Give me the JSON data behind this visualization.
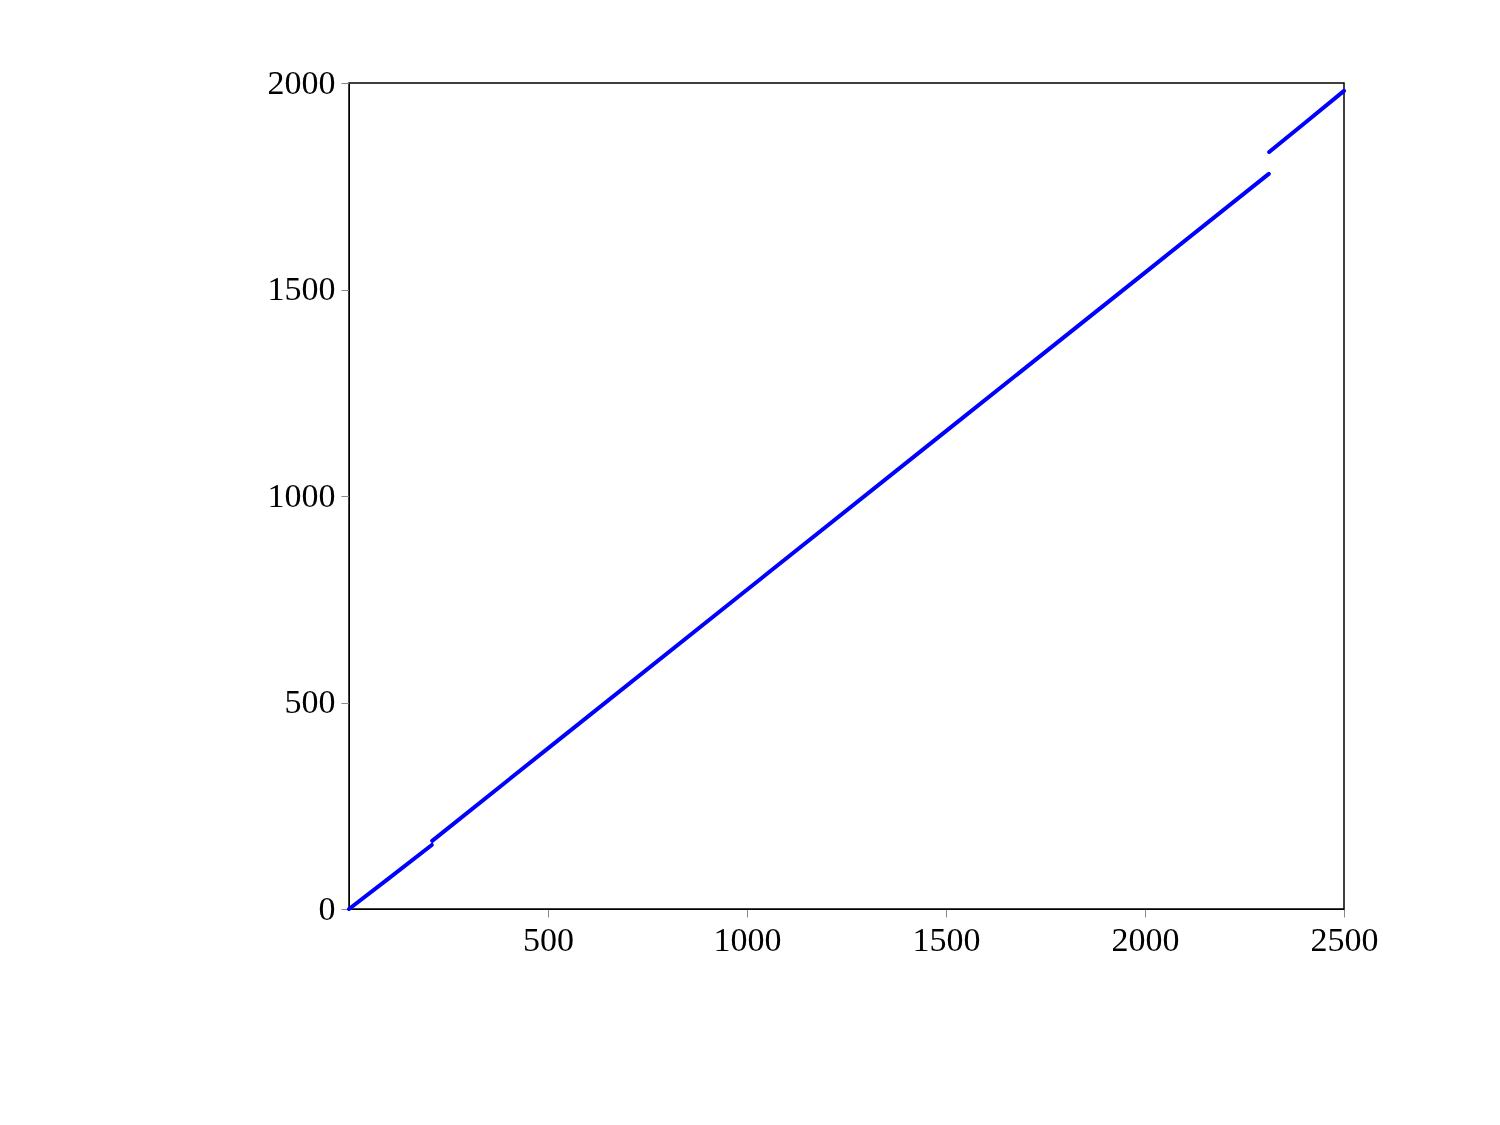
{
  "chart_data": {
    "type": "line",
    "x": [
      0,
      100,
      208,
      208.5,
      209,
      500,
      1000,
      1500,
      2000,
      2311,
      2311.5,
      2312,
      2400,
      2500
    ],
    "series": [
      {
        "color": "#0000ff",
        "values": [
          0,
          74,
          155,
          null,
          165,
          389,
          773,
          1157,
          1541,
          1780,
          null,
          1833,
          1902,
          1981
        ]
      }
    ],
    "xlim": [
      0,
      2500
    ],
    "xticks": [
      500,
      1000,
      1500,
      2000,
      2500
    ],
    "ylim": [
      0,
      2000
    ],
    "yticks": [
      0,
      500,
      1000,
      1500,
      2000
    ],
    "grid": false,
    "legend": false,
    "marker": "none",
    "line_style": "solid"
  }
}
